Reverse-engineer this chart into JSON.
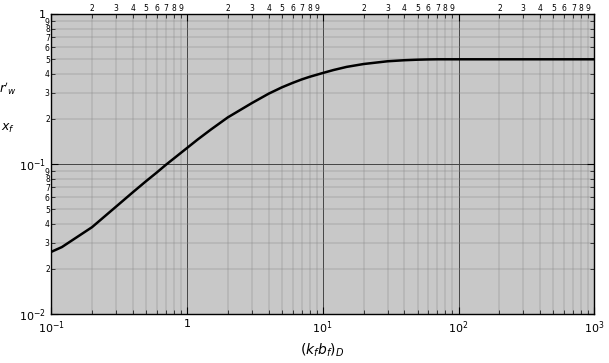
{
  "xlim": [
    0.1,
    1000
  ],
  "ylim": [
    0.01,
    1.0
  ],
  "xlabel": "$(k_f b_f)_D$",
  "curve_x": [
    0.1,
    0.12,
    0.15,
    0.2,
    0.3,
    0.4,
    0.5,
    0.6,
    0.7,
    0.8,
    1.0,
    1.2,
    1.5,
    2.0,
    3.0,
    4.0,
    5.0,
    6.0,
    7.0,
    8.0,
    10.0,
    12.0,
    15.0,
    20.0,
    30.0,
    40.0,
    50.0,
    60.0,
    70.0,
    80.0,
    100.0,
    150.0,
    200.0,
    300.0,
    500.0,
    1000.0
  ],
  "curve_y": [
    0.026,
    0.028,
    0.032,
    0.038,
    0.052,
    0.065,
    0.077,
    0.088,
    0.099,
    0.109,
    0.128,
    0.146,
    0.17,
    0.205,
    0.255,
    0.295,
    0.325,
    0.348,
    0.367,
    0.382,
    0.405,
    0.424,
    0.445,
    0.465,
    0.485,
    0.493,
    0.497,
    0.499,
    0.5,
    0.5,
    0.5,
    0.5,
    0.5,
    0.5,
    0.5,
    0.5
  ],
  "background_color": "#c8c8c8",
  "curve_color": "#000000",
  "curve_linewidth": 1.8,
  "major_grid_color": "#444444",
  "minor_grid_color": "#888888",
  "major_grid_lw": 0.7,
  "minor_grid_lw": 0.35,
  "xlabel_fontsize": 10,
  "ylabel_fontsize": 9,
  "tick_labelsize": 8,
  "xtick_labels": [
    "$10^{-1}$",
    "1",
    "$10^{1}$",
    "$10^{2}$",
    "$10^{3}$"
  ],
  "ytick_labels": [
    "$10^{-2}$",
    "$10^{-1}$",
    "1"
  ],
  "ylabel_line1": "$r'_w$",
  "ylabel_line2": "$x_f$"
}
